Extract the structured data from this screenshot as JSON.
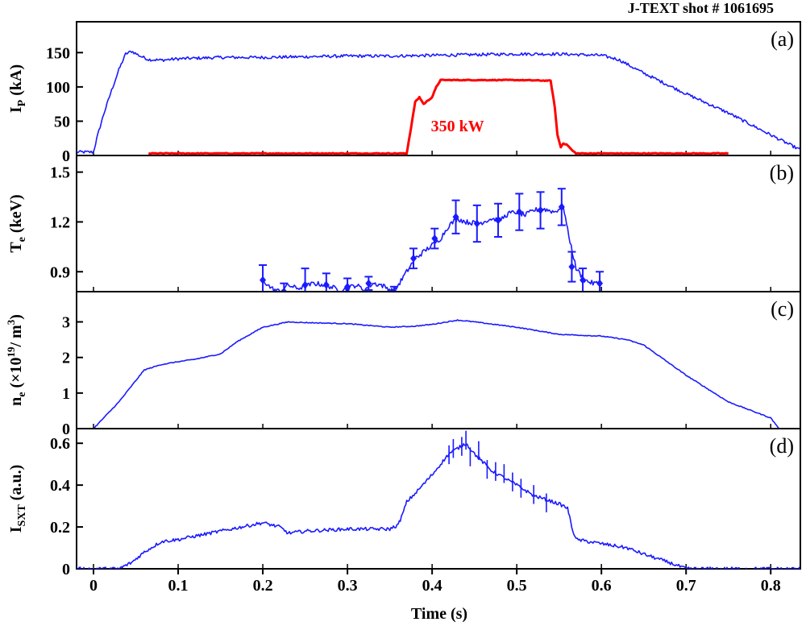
{
  "figure_title": "J-TEXT shot # 1061695",
  "x_axis": {
    "label": "Time (s)",
    "range": [
      -0.02,
      0.835
    ],
    "ticks": [
      0,
      0.1,
      0.2,
      0.3,
      0.4,
      0.5,
      0.6,
      0.7,
      0.8
    ],
    "tick_labels": [
      "0",
      "0.1",
      "0.2",
      "0.3",
      "0.4",
      "0.5",
      "0.6",
      "0.7",
      "0.8"
    ]
  },
  "colors": {
    "blue": "#1a1aff",
    "red": "#ff0000",
    "axis": "#000000"
  },
  "chart_data": [
    {
      "type": "line",
      "panel_label": "(a)",
      "ylabel_main": "I",
      "ylabel_sub": "P",
      "ylabel_tail": " (kA)",
      "ylim": [
        0,
        195
      ],
      "yticks": [
        0,
        50,
        100,
        150
      ],
      "ytick_labels": [
        "0",
        "50",
        "100",
        "150"
      ],
      "annotation": {
        "text": "350 kW",
        "x": 0.43,
        "y": 35
      },
      "series": [
        {
          "color": "#1a1aff",
          "noise": 2.2,
          "x": [
            -0.02,
            0.0,
            0.005,
            0.012,
            0.02,
            0.03,
            0.038,
            0.045,
            0.055,
            0.065,
            0.08,
            0.1,
            0.15,
            0.2,
            0.25,
            0.3,
            0.35,
            0.4,
            0.45,
            0.5,
            0.55,
            0.6,
            0.62,
            0.65,
            0.7,
            0.75,
            0.8,
            0.835
          ],
          "y": [
            5,
            5,
            30,
            60,
            90,
            125,
            148,
            152,
            145,
            140,
            139,
            141,
            143,
            143,
            144,
            145,
            145,
            146,
            147,
            148,
            148,
            146,
            140,
            120,
            90,
            62,
            30,
            8
          ]
        },
        {
          "color": "#ff0000",
          "noise": 0.6,
          "x": [
            0.065,
            0.37,
            0.375,
            0.38,
            0.385,
            0.39,
            0.4,
            0.405,
            0.41,
            0.43,
            0.5,
            0.54,
            0.545,
            0.548,
            0.552,
            0.555,
            0.56,
            0.565,
            0.57,
            0.75
          ],
          "y": [
            3,
            3,
            40,
            78,
            85,
            75,
            85,
            100,
            110,
            110,
            110,
            109,
            70,
            30,
            12,
            18,
            15,
            8,
            3,
            3
          ]
        }
      ]
    },
    {
      "type": "line",
      "panel_label": "(b)",
      "ylabel_main": "T",
      "ylabel_sub": "e",
      "ylabel_tail": " (keV)",
      "ylim": [
        0.78,
        1.6
      ],
      "yticks": [
        0.9,
        1.2,
        1.5
      ],
      "ytick_labels": [
        "0.9",
        "1.2",
        "1.5"
      ],
      "series": [
        {
          "color": "#1a1aff",
          "noise": 0.015,
          "x": [
            0.2,
            0.21,
            0.22,
            0.23,
            0.24,
            0.25,
            0.26,
            0.275,
            0.29,
            0.3,
            0.31,
            0.32,
            0.33,
            0.34,
            0.355,
            0.37,
            0.38,
            0.39,
            0.4,
            0.41,
            0.42,
            0.43,
            0.44,
            0.455,
            0.47,
            0.48,
            0.49,
            0.5,
            0.51,
            0.52,
            0.53,
            0.545,
            0.555,
            0.56,
            0.57,
            0.58,
            0.59,
            0.6
          ],
          "y": [
            0.85,
            0.8,
            0.78,
            0.82,
            0.8,
            0.81,
            0.83,
            0.82,
            0.79,
            0.8,
            0.82,
            0.79,
            0.83,
            0.82,
            0.78,
            0.9,
            0.98,
            1.02,
            1.06,
            1.1,
            1.18,
            1.22,
            1.2,
            1.19,
            1.22,
            1.21,
            1.25,
            1.26,
            1.24,
            1.27,
            1.28,
            1.26,
            1.3,
            1.15,
            0.92,
            0.85,
            0.83,
            0.83
          ]
        }
      ],
      "errorbars": {
        "color": "#1a1aff",
        "points": [
          {
            "x": 0.2,
            "y": 0.85,
            "e": 0.09
          },
          {
            "x": 0.225,
            "y": 0.78,
            "e": 0.05
          },
          {
            "x": 0.25,
            "y": 0.82,
            "e": 0.1
          },
          {
            "x": 0.275,
            "y": 0.82,
            "e": 0.07
          },
          {
            "x": 0.3,
            "y": 0.81,
            "e": 0.05
          },
          {
            "x": 0.325,
            "y": 0.83,
            "e": 0.04
          },
          {
            "x": 0.355,
            "y": 0.78,
            "e": 0.03
          },
          {
            "x": 0.378,
            "y": 0.98,
            "e": 0.06
          },
          {
            "x": 0.403,
            "y": 1.1,
            "e": 0.06
          },
          {
            "x": 0.428,
            "y": 1.23,
            "e": 0.1
          },
          {
            "x": 0.453,
            "y": 1.19,
            "e": 0.11
          },
          {
            "x": 0.478,
            "y": 1.21,
            "e": 0.1
          },
          {
            "x": 0.503,
            "y": 1.26,
            "e": 0.11
          },
          {
            "x": 0.528,
            "y": 1.27,
            "e": 0.11
          },
          {
            "x": 0.553,
            "y": 1.29,
            "e": 0.11
          },
          {
            "x": 0.565,
            "y": 0.93,
            "e": 0.09
          },
          {
            "x": 0.578,
            "y": 0.85,
            "e": 0.07
          },
          {
            "x": 0.598,
            "y": 0.83,
            "e": 0.07
          }
        ]
      }
    },
    {
      "type": "line",
      "panel_label": "(c)",
      "ylabel_main": "n",
      "ylabel_sub": "e",
      "ylabel_tail": " (×10",
      "ylabel_sup": "19",
      "ylabel_end": "/ m",
      "ylabel_sup2": "3",
      "ylabel_close": ")",
      "ylim": [
        0,
        3.85
      ],
      "yticks": [
        0,
        1,
        2,
        3
      ],
      "ytick_labels": [
        "0",
        "1",
        "2",
        "3"
      ],
      "series": [
        {
          "color": "#1a1aff",
          "noise": 0.012,
          "x": [
            0.0,
            0.01,
            0.03,
            0.05,
            0.06,
            0.08,
            0.1,
            0.12,
            0.15,
            0.17,
            0.2,
            0.23,
            0.25,
            0.3,
            0.35,
            0.38,
            0.4,
            0.43,
            0.45,
            0.5,
            0.55,
            0.6,
            0.63,
            0.65,
            0.7,
            0.75,
            0.8,
            0.81
          ],
          "y": [
            0.0,
            0.25,
            0.75,
            1.35,
            1.65,
            1.8,
            1.88,
            1.95,
            2.1,
            2.45,
            2.85,
            3.0,
            2.98,
            2.95,
            2.85,
            2.88,
            2.93,
            3.05,
            3.0,
            2.85,
            2.65,
            2.6,
            2.5,
            2.35,
            1.5,
            0.75,
            0.3,
            0.0
          ]
        }
      ]
    },
    {
      "type": "line",
      "panel_label": "(d)",
      "ylabel_main": "I",
      "ylabel_sub": "SXT",
      "ylabel_tail": " (a.u.)",
      "ylim": [
        0,
        0.67
      ],
      "yticks": [
        0,
        0.2,
        0.4,
        0.6
      ],
      "ytick_labels": [
        "0",
        "0.2",
        "0.4",
        "0.6"
      ],
      "series": [
        {
          "color": "#1a1aff",
          "noise": 0.008,
          "x": [
            -0.02,
            0.03,
            0.045,
            0.06,
            0.08,
            0.1,
            0.15,
            0.2,
            0.22,
            0.23,
            0.25,
            0.3,
            0.35,
            0.36,
            0.365,
            0.37,
            0.38,
            0.4,
            0.42,
            0.44,
            0.45,
            0.47,
            0.5,
            0.52,
            0.55,
            0.56,
            0.565,
            0.57,
            0.6,
            0.63,
            0.65,
            0.68,
            0.7,
            0.835
          ],
          "y": [
            0.0,
            0.0,
            0.03,
            0.08,
            0.13,
            0.14,
            0.18,
            0.22,
            0.2,
            0.17,
            0.18,
            0.19,
            0.19,
            0.21,
            0.26,
            0.32,
            0.36,
            0.45,
            0.55,
            0.6,
            0.55,
            0.47,
            0.4,
            0.35,
            0.31,
            0.29,
            0.2,
            0.14,
            0.12,
            0.1,
            0.07,
            0.03,
            0.0,
            0.0
          ]
        },
        {
          "color": "#1a1aff",
          "spikes": true,
          "x": [
            0.42,
            0.425,
            0.435,
            0.44,
            0.445,
            0.455,
            0.465,
            0.475,
            0.485,
            0.495,
            0.505,
            0.52,
            0.535
          ],
          "y": [
            0.59,
            0.62,
            0.63,
            0.66,
            0.58,
            0.61,
            0.52,
            0.51,
            0.5,
            0.46,
            0.43,
            0.4,
            0.36
          ]
        }
      ]
    }
  ]
}
